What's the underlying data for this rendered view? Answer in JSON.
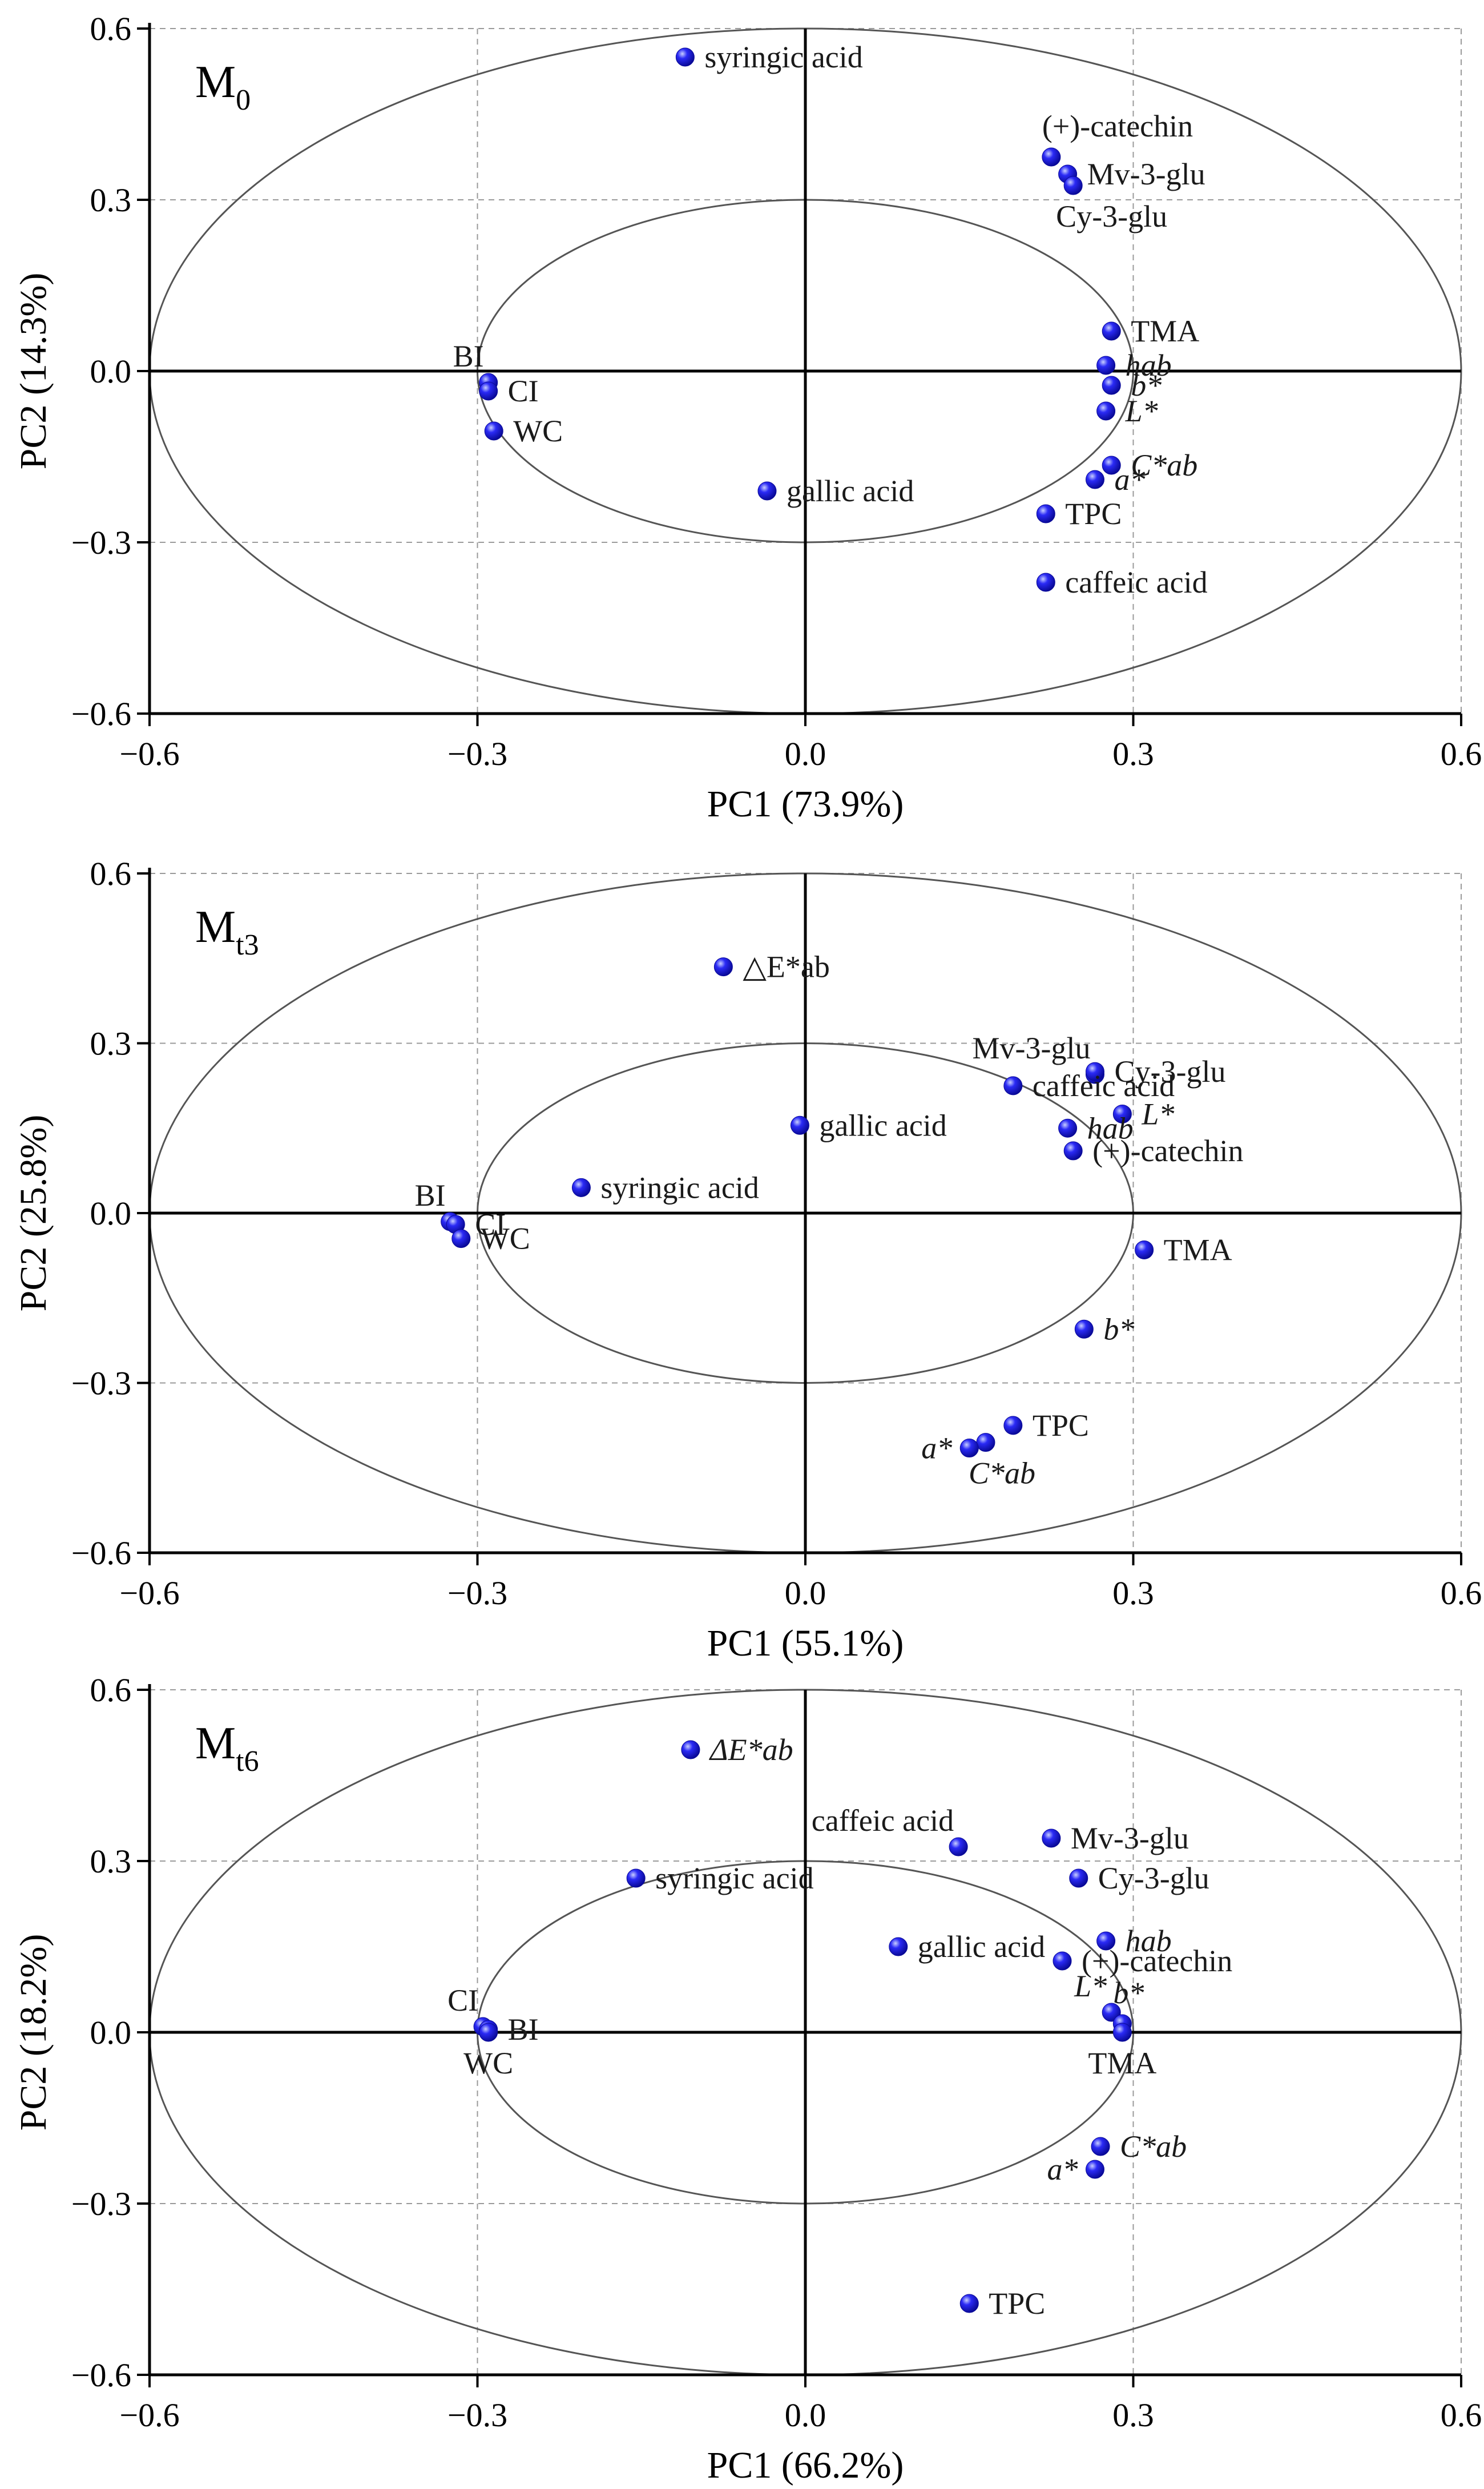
{
  "colors": {
    "point": "#1c1cf0",
    "point_highlight": "#9aa6ff",
    "circle": "#555555",
    "grid": "#9a9a9a",
    "axis": "#000000"
  },
  "chart_data": [
    {
      "type": "scatter",
      "title": "M",
      "title_sub": "0",
      "xlabel": "PC1 (73.9%)",
      "ylabel": "PC2 (14.3%)",
      "xlim": [
        -0.6,
        0.6
      ],
      "ylim": [
        -0.6,
        0.6
      ],
      "xticks": [
        "−0.6",
        "−0.3",
        "0.0",
        "0.3",
        "0.6"
      ],
      "yticks": [
        "0.6",
        "0.3",
        "0.0",
        "−0.3",
        "−0.6"
      ],
      "grid": true,
      "circles": [
        1.0,
        0.5
      ],
      "points": [
        {
          "label": "syringic acid",
          "x": -0.11,
          "y": 0.55,
          "italic": false,
          "pos": "r"
        },
        {
          "label": "(+)-catechin",
          "x": 0.225,
          "y": 0.375,
          "italic": false,
          "pos": "tr"
        },
        {
          "label": "Mv-3-glu",
          "x": 0.24,
          "y": 0.345,
          "italic": false,
          "pos": "r"
        },
        {
          "label": "Cy-3-glu",
          "x": 0.245,
          "y": 0.325,
          "italic": false,
          "pos": "br"
        },
        {
          "label": "TMA",
          "x": 0.28,
          "y": 0.07,
          "italic": false,
          "pos": "r"
        },
        {
          "label": "hab",
          "x": 0.275,
          "y": 0.01,
          "italic": true,
          "pos": "r"
        },
        {
          "label": "b*",
          "x": 0.28,
          "y": -0.025,
          "italic": true,
          "pos": "r"
        },
        {
          "label": "L*",
          "x": 0.275,
          "y": -0.07,
          "italic": true,
          "pos": "r"
        },
        {
          "label": "C*ab",
          "x": 0.28,
          "y": -0.165,
          "italic": true,
          "pos": "r"
        },
        {
          "label": "a*",
          "x": 0.265,
          "y": -0.19,
          "italic": true,
          "pos": "r"
        },
        {
          "label": "TPC",
          "x": 0.22,
          "y": -0.25,
          "italic": false,
          "pos": "r"
        },
        {
          "label": "caffeic acid",
          "x": 0.22,
          "y": -0.37,
          "italic": false,
          "pos": "r"
        },
        {
          "label": "gallic acid",
          "x": -0.035,
          "y": -0.21,
          "italic": false,
          "pos": "r"
        },
        {
          "label": "BI",
          "x": -0.29,
          "y": -0.02,
          "italic": false,
          "pos": "tl"
        },
        {
          "label": "CI",
          "x": -0.29,
          "y": -0.035,
          "italic": false,
          "pos": "r"
        },
        {
          "label": "WC",
          "x": -0.285,
          "y": -0.105,
          "italic": false,
          "pos": "r"
        }
      ]
    },
    {
      "type": "scatter",
      "title": "M",
      "title_sub": "t3",
      "xlabel": "PC1 (55.1%)",
      "ylabel": "PC2 (25.8%)",
      "xlim": [
        -0.6,
        0.6
      ],
      "ylim": [
        -0.6,
        0.6
      ],
      "xticks": [
        "−0.6",
        "−0.3",
        "0.0",
        "0.3",
        "0.6"
      ],
      "yticks": [
        "0.6",
        "0.3",
        "0.0",
        "−0.3",
        "−0.6"
      ],
      "grid": true,
      "circles": [
        1.0,
        0.5
      ],
      "points": [
        {
          "label": "△E*ab",
          "x": -0.075,
          "y": 0.435,
          "italic": false,
          "pos": "r"
        },
        {
          "label": "Mv-3-glu",
          "x": 0.265,
          "y": 0.245,
          "italic": false,
          "pos": "tl"
        },
        {
          "label": "Cy-3-glu",
          "x": 0.265,
          "y": 0.25,
          "italic": false,
          "pos": "r"
        },
        {
          "label": "caffeic acid",
          "x": 0.19,
          "y": 0.225,
          "italic": false,
          "pos": "r"
        },
        {
          "label": "L*",
          "x": 0.29,
          "y": 0.175,
          "italic": true,
          "pos": "r"
        },
        {
          "label": "hab",
          "x": 0.24,
          "y": 0.15,
          "italic": true,
          "pos": "r"
        },
        {
          "label": "(+)-catechin",
          "x": 0.245,
          "y": 0.11,
          "italic": false,
          "pos": "r"
        },
        {
          "label": "gallic acid",
          "x": -0.005,
          "y": 0.155,
          "italic": false,
          "pos": "r"
        },
        {
          "label": "syringic acid",
          "x": -0.205,
          "y": 0.045,
          "italic": false,
          "pos": "r"
        },
        {
          "label": "BI",
          "x": -0.325,
          "y": -0.015,
          "italic": false,
          "pos": "tl"
        },
        {
          "label": "CI",
          "x": -0.32,
          "y": -0.02,
          "italic": false,
          "pos": "r"
        },
        {
          "label": "WC",
          "x": -0.315,
          "y": -0.045,
          "italic": false,
          "pos": "r"
        },
        {
          "label": "TMA",
          "x": 0.31,
          "y": -0.065,
          "italic": false,
          "pos": "r"
        },
        {
          "label": "b*",
          "x": 0.255,
          "y": -0.205,
          "italic": true,
          "pos": "r"
        },
        {
          "label": "TPC",
          "x": 0.19,
          "y": -0.375,
          "italic": false,
          "pos": "r"
        },
        {
          "label": "C*ab",
          "x": 0.165,
          "y": -0.405,
          "italic": true,
          "pos": "br"
        },
        {
          "label": "a*",
          "x": 0.15,
          "y": -0.415,
          "italic": true,
          "pos": "l"
        }
      ]
    },
    {
      "type": "scatter",
      "title": "M",
      "title_sub": "t6",
      "xlabel": "PC1 (66.2%)",
      "ylabel": "PC2 (18.2%)",
      "xlim": [
        -0.6,
        0.6
      ],
      "ylim": [
        -0.6,
        0.6
      ],
      "xticks": [
        "−0.6",
        "−0.3",
        "0.0",
        "0.3",
        "0.6"
      ],
      "yticks": [
        "0.6",
        "0.3",
        "0.0",
        "−0.3",
        "−0.6"
      ],
      "grid": true,
      "circles": [
        1.0,
        0.5
      ],
      "points": [
        {
          "label": "ΔE*ab",
          "x": -0.105,
          "y": 0.495,
          "italic": true,
          "pos": "r"
        },
        {
          "label": "caffeic acid",
          "x": 0.14,
          "y": 0.325,
          "italic": false,
          "pos": "tl"
        },
        {
          "label": "Mv-3-glu",
          "x": 0.225,
          "y": 0.34,
          "italic": false,
          "pos": "r"
        },
        {
          "label": "Cy-3-glu",
          "x": 0.25,
          "y": 0.27,
          "italic": false,
          "pos": "r"
        },
        {
          "label": "syringic acid",
          "x": -0.155,
          "y": 0.27,
          "italic": false,
          "pos": "r"
        },
        {
          "label": "hab",
          "x": 0.275,
          "y": 0.16,
          "italic": true,
          "pos": "r"
        },
        {
          "label": "gallic acid",
          "x": 0.085,
          "y": 0.15,
          "italic": false,
          "pos": "r"
        },
        {
          "label": "(+)-catechin",
          "x": 0.235,
          "y": 0.125,
          "italic": false,
          "pos": "r"
        },
        {
          "label": "L*",
          "x": 0.28,
          "y": 0.035,
          "italic": true,
          "pos": "tl"
        },
        {
          "label": "b*",
          "x": 0.29,
          "y": 0.015,
          "italic": true,
          "pos": "tr"
        },
        {
          "label": "TMA",
          "x": 0.29,
          "y": 0.0,
          "italic": false,
          "pos": "b"
        },
        {
          "label": "CI",
          "x": -0.295,
          "y": 0.01,
          "italic": false,
          "pos": "tl"
        },
        {
          "label": "BI",
          "x": -0.29,
          "y": 0.005,
          "italic": false,
          "pos": "r"
        },
        {
          "label": "WC",
          "x": -0.29,
          "y": 0.0,
          "italic": false,
          "pos": "b"
        },
        {
          "label": "C*ab",
          "x": 0.27,
          "y": -0.2,
          "italic": true,
          "pos": "r"
        },
        {
          "label": "a*",
          "x": 0.265,
          "y": -0.24,
          "italic": true,
          "pos": "l"
        },
        {
          "label": "TPC",
          "x": 0.15,
          "y": -0.475,
          "italic": false,
          "pos": "r"
        }
      ]
    }
  ]
}
